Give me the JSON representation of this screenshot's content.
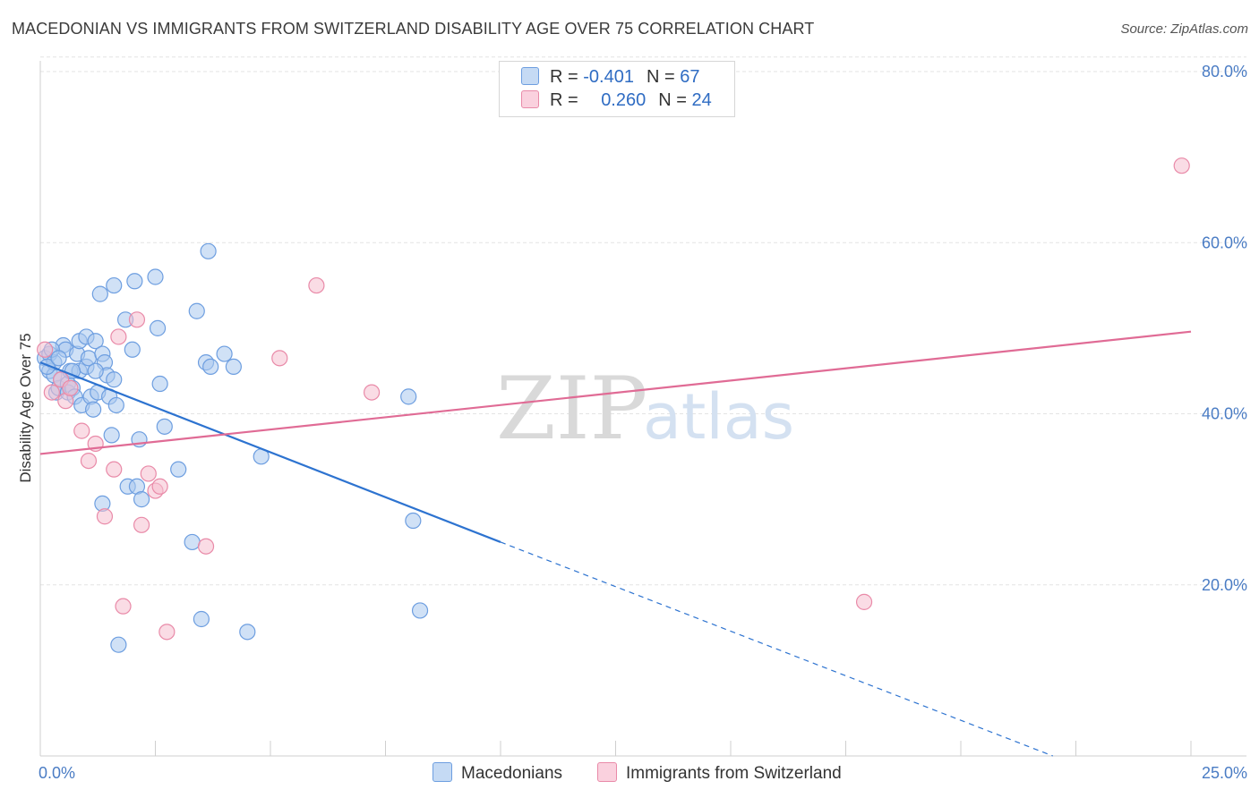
{
  "title": "MACEDONIAN VS IMMIGRANTS FROM SWITZERLAND DISABILITY AGE OVER 75 CORRELATION CHART",
  "source": "Source: ZipAtlas.com",
  "watermark": {
    "zip": "ZIP",
    "atlas": "atlas"
  },
  "colors": {
    "blue_fill": "#a9c8ee",
    "blue_stroke": "#6d9ee0",
    "blue_line": "#2d73d0",
    "pink_fill": "#f6bfd0",
    "pink_stroke": "#e98aa8",
    "pink_line": "#e06b95",
    "grid": "#e3e3e3",
    "tick_label": "#4a7cc4"
  },
  "legend": {
    "rows": [
      {
        "r_label": "R =",
        "r_value": "-0.401",
        "n_label": "N =",
        "n_value": "67"
      },
      {
        "r_label": "R =",
        "r_value": "0.260",
        "n_label": "N =",
        "n_value": "24"
      }
    ]
  },
  "bottom_legend": {
    "series1": "Macedonians",
    "series2": "Immigrants from Switzerland"
  },
  "chart_data": {
    "type": "scatter",
    "xlabel": "",
    "ylabel": "Disability Age Over 75",
    "xlim": [
      0,
      25
    ],
    "ylim": [
      0,
      80
    ],
    "x_tick_labels": [
      "0.0%",
      "25.0%"
    ],
    "y_ticks": [
      20,
      40,
      60,
      80
    ],
    "y_tick_labels": [
      "20.0%",
      "40.0%",
      "60.0%",
      "80.0%"
    ],
    "grid": true,
    "legend_position": "top-center",
    "series": [
      {
        "name": "Macedonians",
        "r": -0.401,
        "n": 67,
        "trend": {
          "x0": 0.0,
          "y0": 46.0,
          "x1": 10.0,
          "y1": 25.0,
          "dashed_to_x": 22.0,
          "dashed_to_y": 0.0
        },
        "points": [
          [
            0.1,
            46.5
          ],
          [
            0.2,
            47.0
          ],
          [
            0.2,
            45.0
          ],
          [
            0.3,
            44.5
          ],
          [
            0.3,
            46.0
          ],
          [
            0.35,
            42.5
          ],
          [
            0.4,
            43.0
          ],
          [
            0.45,
            44.0
          ],
          [
            0.5,
            48.0
          ],
          [
            0.55,
            47.5
          ],
          [
            0.6,
            43.5
          ],
          [
            0.6,
            42.5
          ],
          [
            0.65,
            45.0
          ],
          [
            0.7,
            43.0
          ],
          [
            0.75,
            42.0
          ],
          [
            0.8,
            47.0
          ],
          [
            0.85,
            48.5
          ],
          [
            0.85,
            45.0
          ],
          [
            0.9,
            41.0
          ],
          [
            1.0,
            49.0
          ],
          [
            1.0,
            45.5
          ],
          [
            1.05,
            46.5
          ],
          [
            1.1,
            42.0
          ],
          [
            1.15,
            40.5
          ],
          [
            1.2,
            48.5
          ],
          [
            1.25,
            42.5
          ],
          [
            1.3,
            54.0
          ],
          [
            1.35,
            47.0
          ],
          [
            1.4,
            46.0
          ],
          [
            1.45,
            44.5
          ],
          [
            1.5,
            42.0
          ],
          [
            1.55,
            37.5
          ],
          [
            1.6,
            55.0
          ],
          [
            1.6,
            44.0
          ],
          [
            1.65,
            41.0
          ],
          [
            1.85,
            51.0
          ],
          [
            1.9,
            31.5
          ],
          [
            2.0,
            47.5
          ],
          [
            2.05,
            55.5
          ],
          [
            2.1,
            31.5
          ],
          [
            2.15,
            37.0
          ],
          [
            2.2,
            30.0
          ],
          [
            2.5,
            56.0
          ],
          [
            2.55,
            50.0
          ],
          [
            2.6,
            43.5
          ],
          [
            2.7,
            38.5
          ],
          [
            3.0,
            33.5
          ],
          [
            3.3,
            25.0
          ],
          [
            3.4,
            52.0
          ],
          [
            3.5,
            16.0
          ],
          [
            3.6,
            46.0
          ],
          [
            3.65,
            59.0
          ],
          [
            3.7,
            45.5
          ],
          [
            4.0,
            47.0
          ],
          [
            4.2,
            45.5
          ],
          [
            4.5,
            14.5
          ],
          [
            4.8,
            35.0
          ],
          [
            8.0,
            42.0
          ],
          [
            8.1,
            27.5
          ],
          [
            8.25,
            17.0
          ],
          [
            1.7,
            13.0
          ],
          [
            1.35,
            29.5
          ],
          [
            0.15,
            45.5
          ],
          [
            0.25,
            47.5
          ],
          [
            0.4,
            46.5
          ],
          [
            1.2,
            45.0
          ],
          [
            0.7,
            45.0
          ]
        ]
      },
      {
        "name": "Immigrants from Switzerland",
        "r": 0.26,
        "n": 24,
        "trend": {
          "x0": 0.0,
          "y0": 35.3,
          "x1": 25.0,
          "y1": 49.6
        },
        "points": [
          [
            0.1,
            47.5
          ],
          [
            0.25,
            42.5
          ],
          [
            0.45,
            44.0
          ],
          [
            0.55,
            41.5
          ],
          [
            0.65,
            43.0
          ],
          [
            0.9,
            38.0
          ],
          [
            1.05,
            34.5
          ],
          [
            1.2,
            36.5
          ],
          [
            1.4,
            28.0
          ],
          [
            1.6,
            33.5
          ],
          [
            1.7,
            49.0
          ],
          [
            1.8,
            17.5
          ],
          [
            2.1,
            51.0
          ],
          [
            2.2,
            27.0
          ],
          [
            2.35,
            33.0
          ],
          [
            2.5,
            31.0
          ],
          [
            2.6,
            31.5
          ],
          [
            2.75,
            14.5
          ],
          [
            3.6,
            24.5
          ],
          [
            5.2,
            46.5
          ],
          [
            6.0,
            55.0
          ],
          [
            7.2,
            42.5
          ],
          [
            17.9,
            18.0
          ],
          [
            24.8,
            69.0
          ]
        ]
      }
    ]
  }
}
